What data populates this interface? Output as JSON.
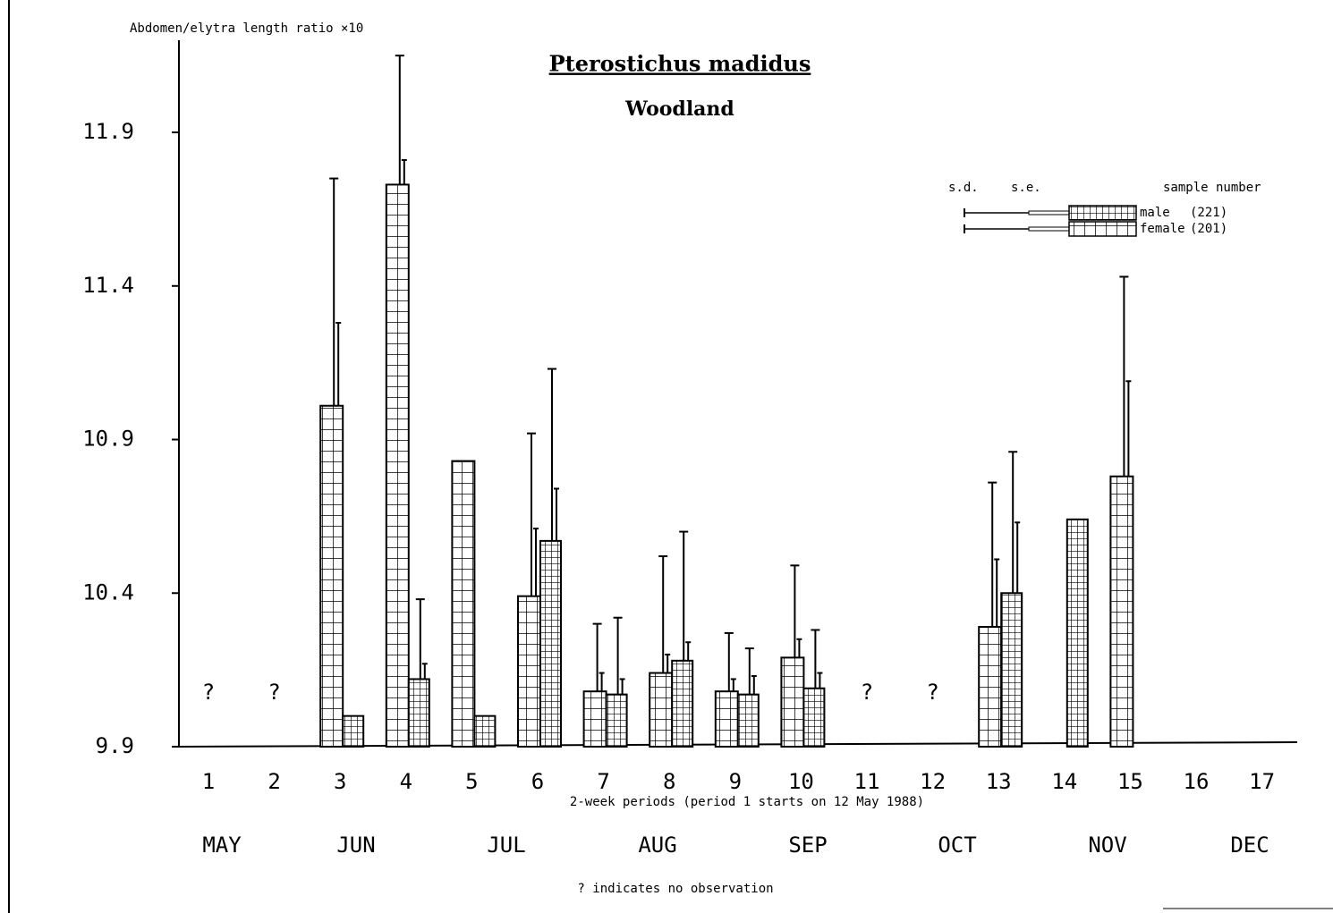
{
  "chart_data": {
    "type": "bar",
    "title": "Pterostichus madidus",
    "subtitle": "Woodland",
    "y_label": "Abdomen/elytra length ratio ×10",
    "x_label": "2-week periods (period 1 starts on 12 May 1988)",
    "footnote": "? indicates no observation",
    "categories": [
      "1",
      "2",
      "3",
      "4",
      "5",
      "6",
      "7",
      "8",
      "9",
      "10",
      "11",
      "12",
      "13",
      "14",
      "15",
      "16",
      "17"
    ],
    "months": [
      "MAY",
      "JUN",
      "JUL",
      "AUG",
      "SEP",
      "OCT",
      "NOV",
      "DEC"
    ],
    "no_observation": [
      "1",
      "2",
      "11",
      "12"
    ],
    "no_observation_text": "?",
    "legend_header": [
      "s.d.",
      "s.e.",
      "sample number"
    ],
    "series": [
      {
        "name": "female",
        "sample_number": "(201)",
        "pattern": "coarse",
        "color": "#000000",
        "values": [
          null,
          null,
          11.01,
          11.73,
          10.83,
          10.39,
          10.08,
          10.14,
          10.08,
          10.19,
          null,
          null,
          10.29,
          null,
          10.78,
          null,
          null
        ],
        "sd": [
          null,
          null,
          0.74,
          0.42,
          null,
          0.53,
          0.22,
          0.38,
          0.19,
          0.3,
          null,
          null,
          0.47,
          null,
          0.65,
          null,
          null
        ],
        "se": [
          null,
          null,
          0.27,
          0.08,
          null,
          0.22,
          0.06,
          0.06,
          0.04,
          0.06,
          null,
          null,
          0.22,
          null,
          0.31,
          null,
          null
        ]
      },
      {
        "name": "male",
        "sample_number": "(221)",
        "pattern": "fine",
        "color": "#000000",
        "values": [
          null,
          null,
          10.0,
          10.12,
          10.0,
          10.57,
          10.07,
          10.18,
          10.07,
          10.09,
          null,
          null,
          10.4,
          10.64,
          null,
          null,
          null
        ],
        "sd": [
          null,
          null,
          null,
          0.26,
          null,
          0.56,
          0.25,
          0.42,
          0.15,
          0.19,
          null,
          null,
          0.46,
          null,
          null,
          null,
          null
        ],
        "se": [
          null,
          null,
          null,
          0.05,
          null,
          0.17,
          0.05,
          0.06,
          0.06,
          0.05,
          null,
          null,
          0.23,
          null,
          null,
          null,
          null
        ]
      }
    ],
    "ylim": [
      9.9,
      12.2
    ],
    "yticks": [
      9.9,
      10.4,
      10.9,
      11.4,
      11.9
    ],
    "grid": false
  }
}
